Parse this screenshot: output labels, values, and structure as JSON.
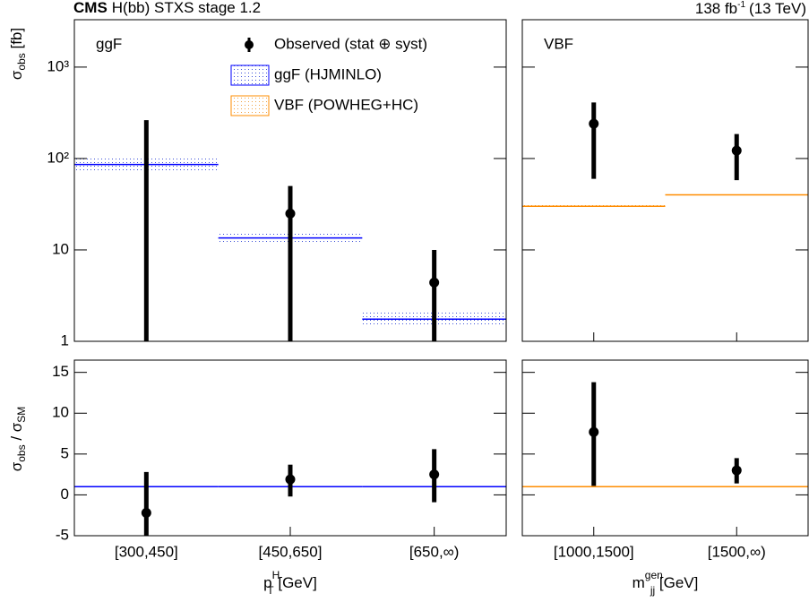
{
  "header": {
    "experiment": "CMS",
    "title": "H(bb) STXS stage 1.2",
    "lumi": {
      "pre": "138 fb",
      "sup": "-1",
      "post": "(13 TeV)"
    }
  },
  "chart_data": [
    {
      "type": "errorbar",
      "label": "ggF",
      "log": true,
      "ylim": [
        1,
        3300
      ],
      "y_label": {
        "base": "σ",
        "sub": "obs",
        "post": " [fb]"
      },
      "yticks": [
        1,
        10,
        {
          "value": 100,
          "label": "10²"
        },
        {
          "value": 1000,
          "label": "10³"
        }
      ],
      "series": [
        {
          "name": "Observed (stat ⊕ syst)",
          "color": "#000000",
          "values": [
            null,
            25,
            4.4
          ],
          "lower": [
            null,
            null,
            null
          ],
          "upper": [
            263,
            50,
            10
          ]
        },
        {
          "name": "ggF (HJMINLO)",
          "color": "#0000ff",
          "values": [
            86,
            13.5,
            1.75
          ],
          "band_low": [
            72,
            11.5,
            1.5
          ],
          "band_high": [
            105,
            16,
            2.1
          ]
        }
      ]
    },
    {
      "type": "errorbar",
      "label": "VBF",
      "log": true,
      "ylim": [
        1,
        3300
      ],
      "series": [
        {
          "color": "#000000",
          "values": [
            240,
            122
          ],
          "lower": [
            60,
            58
          ],
          "upper": [
            410,
            185
          ]
        },
        {
          "name": "VBF (POWHEG+HC)",
          "color": "#ff8c00",
          "values": [
            30,
            40
          ],
          "band_low": [
            29,
            38.5
          ],
          "band_high": [
            31,
            41.5
          ]
        }
      ]
    },
    {
      "type": "errorbar",
      "log": false,
      "ylim": [
        -5,
        16.5
      ],
      "y_label": {
        "base": "σ",
        "sub": "obs",
        "post": " / σ",
        "sub2": "SM"
      },
      "yticks": [
        -5,
        0,
        5,
        10,
        15
      ],
      "categories": [
        "[300,450]",
        "[450,650]",
        "[650,∞)"
      ],
      "x_label": {
        "base": "p",
        "sub": "T",
        "sup": "H",
        "post": " [GeV]"
      },
      "series": [
        {
          "color": "#000000",
          "values": [
            -2.2,
            1.9,
            2.5
          ],
          "lower": [
            null,
            -0.2,
            -0.9
          ],
          "upper": [
            2.8,
            3.7,
            5.6
          ]
        },
        {
          "color": "#0000ff",
          "values": [
            1,
            1,
            1
          ]
        }
      ]
    },
    {
      "type": "errorbar",
      "log": false,
      "ylim": [
        -5,
        16.5
      ],
      "categories": [
        "[1000,1500]",
        "[1500,∞)"
      ],
      "x_label": {
        "base": "m",
        "sub": "jj",
        "sup": "gen",
        "post": " [GeV]"
      },
      "series": [
        {
          "color": "#000000",
          "values": [
            7.7,
            3.0
          ],
          "lower": [
            1.1,
            1.4
          ],
          "upper": [
            13.8,
            4.5
          ]
        },
        {
          "color": "#ff8c00",
          "values": [
            1,
            1
          ]
        }
      ]
    }
  ]
}
